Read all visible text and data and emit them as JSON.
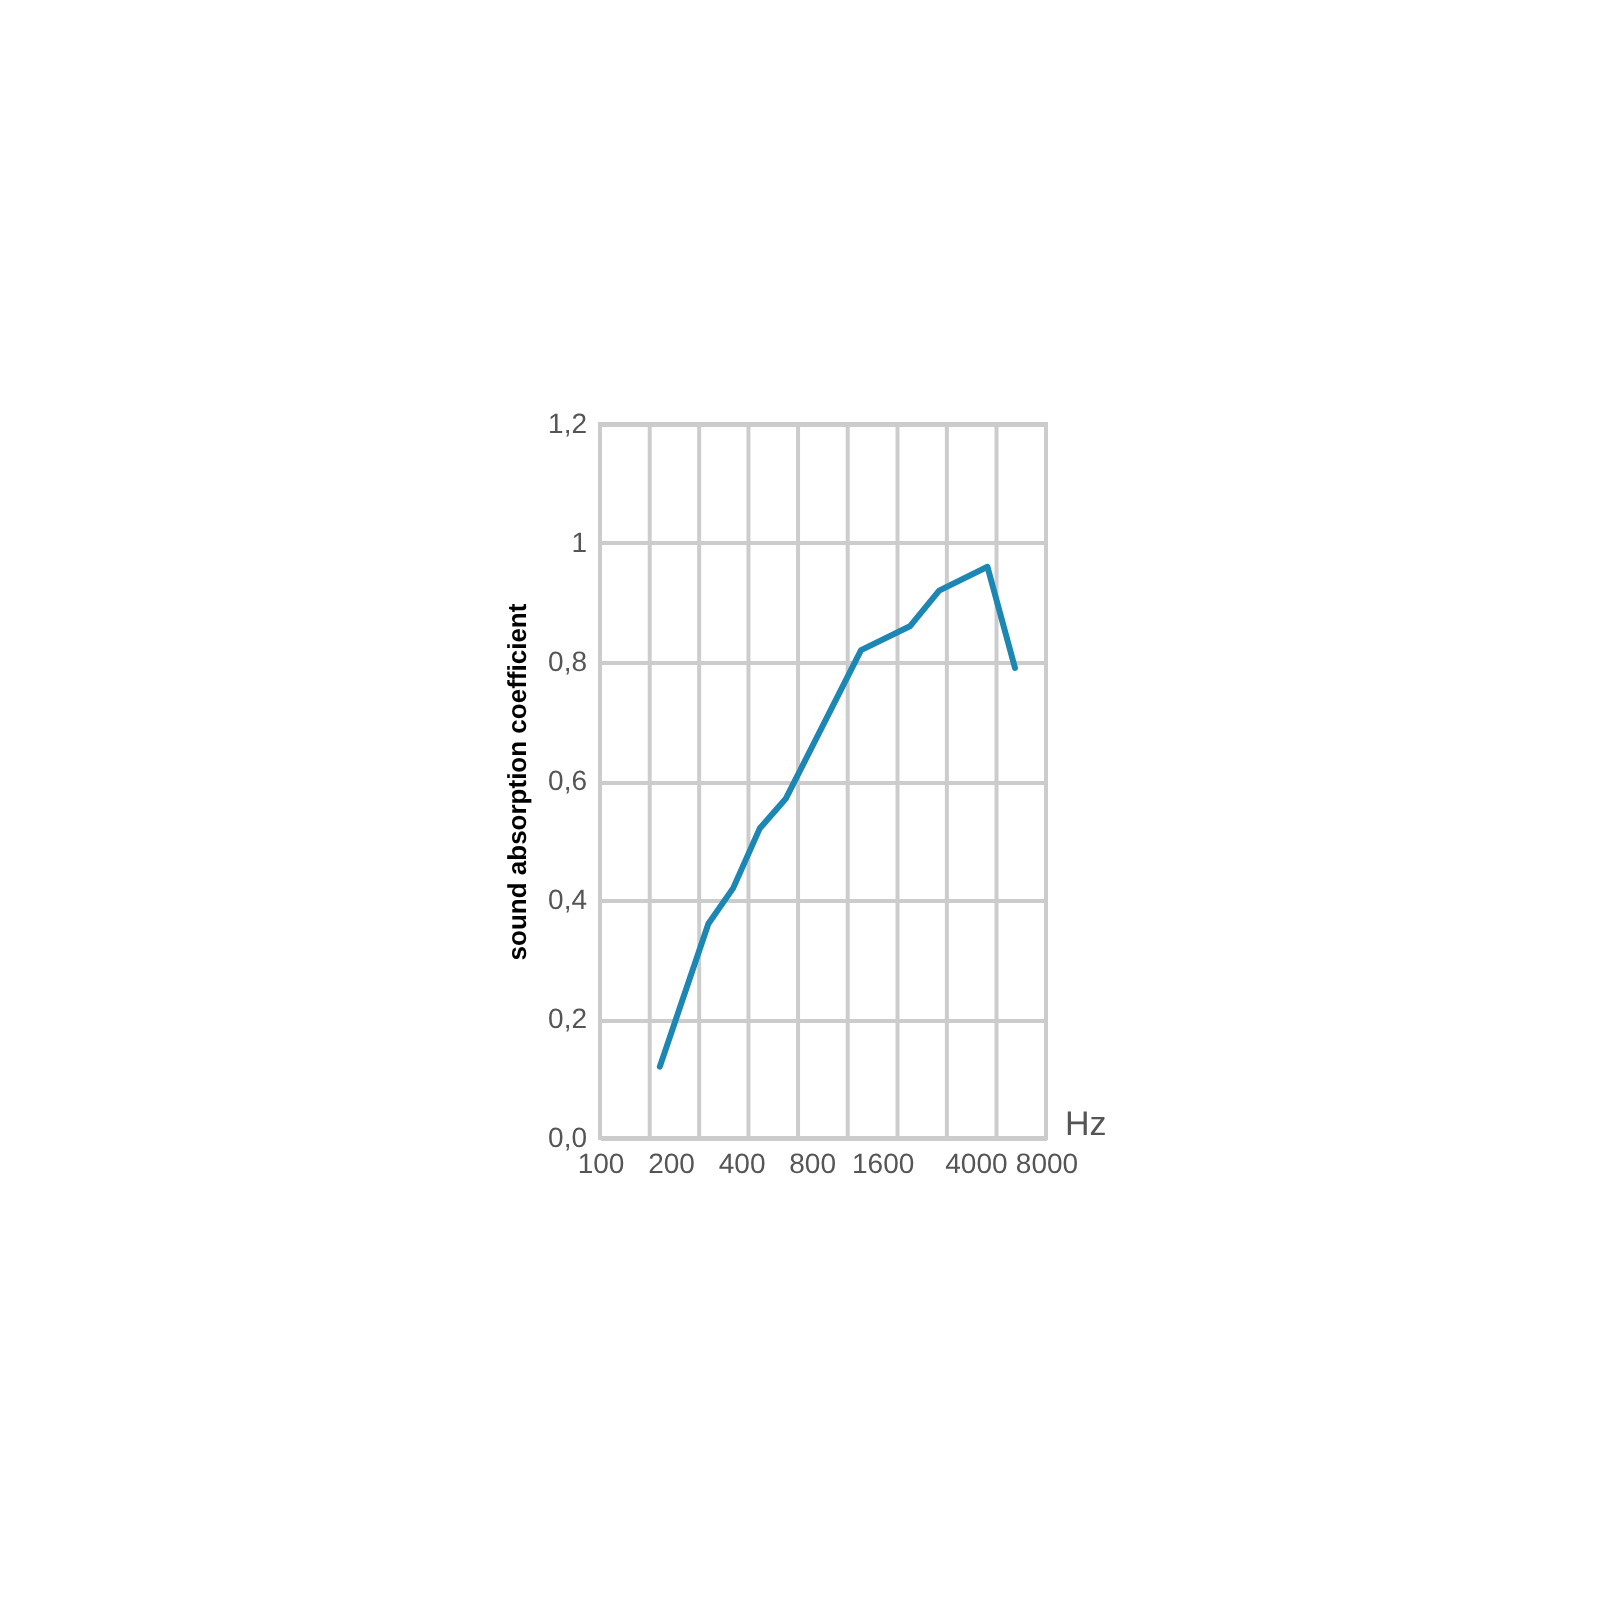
{
  "chart_data": {
    "type": "line",
    "xlabel": "Hz",
    "ylabel": "sound absorption coefficient",
    "x": [
      180,
      290,
      370,
      480,
      620,
      1300,
      2100,
      2800,
      4500,
      5900
    ],
    "series": [
      {
        "color": "#1c87b3",
        "values": [
          0.12,
          0.36,
          0.42,
          0.52,
          0.57,
          0.82,
          0.86,
          0.92,
          0.96,
          0.79
        ]
      }
    ],
    "xlim": [
      100,
      8000
    ],
    "xticks": [
      100,
      {
        "value": 163,
        "label": null
      },
      200,
      {
        "value": 265,
        "label": null
      },
      400,
      {
        "value": 430,
        "label": null
      },
      {
        "value": 700,
        "label": null
      },
      800,
      {
        "value": 1140,
        "label": null
      },
      1600,
      {
        "value": 1860,
        "label": null
      },
      {
        "value": 3020,
        "label": null
      },
      4000,
      {
        "value": 4920,
        "label": null
      },
      8000
    ],
    "ylim": [
      0,
      1.2
    ],
    "yticks": [
      {
        "value": 0,
        "label": "0,0"
      },
      {
        "value": 0.2,
        "label": "0,2"
      },
      {
        "value": 0.4,
        "label": "0,4"
      },
      {
        "value": 0.6,
        "label": "0,6"
      },
      {
        "value": 0.8,
        "label": "0,8"
      },
      1,
      {
        "value": 1.2,
        "label": "1,2"
      }
    ],
    "log": "x",
    "grid": true,
    "line_style": "solid"
  }
}
